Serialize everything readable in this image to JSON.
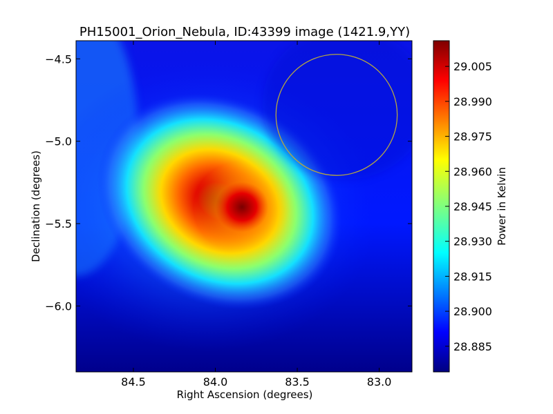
{
  "chart_data": {
    "type": "heatmap",
    "title": "PH15001_Orion_Nebula, ID:43399 image (1421.9,YY)",
    "xlabel": "Right Ascension (degrees)",
    "ylabel": "Declination (degrees)",
    "colorbar_label": "Power in Kelvin",
    "xlim": [
      84.85,
      82.8
    ],
    "ylim": [
      -6.4,
      -4.39
    ],
    "x_ticks": [
      84.5,
      84.0,
      83.5,
      83.0
    ],
    "x_tick_labels": [
      "84.5",
      "84.0",
      "83.5",
      "83.0"
    ],
    "y_ticks": [
      -4.5,
      -5.0,
      -5.5,
      -6.0
    ],
    "y_tick_labels": [
      "−4.5",
      "−5.0",
      "−5.5",
      "−6.0"
    ],
    "colorbar_range": [
      28.874,
      29.016
    ],
    "colorbar_ticks": [
      28.885,
      28.9,
      28.915,
      28.93,
      28.945,
      28.96,
      28.975,
      28.99,
      29.005
    ],
    "colorbar_tick_labels": [
      "28.885",
      "28.900",
      "28.915",
      "28.930",
      "28.945",
      "28.960",
      "28.975",
      "28.990",
      "29.005"
    ],
    "colormap": "jet",
    "peak": {
      "ra": 83.85,
      "dec": -5.38,
      "value": 29.01
    },
    "circle": {
      "ra": 83.26,
      "dec": -4.84,
      "radius_deg": 0.37,
      "color": "#b5a642"
    },
    "grid": false
  }
}
